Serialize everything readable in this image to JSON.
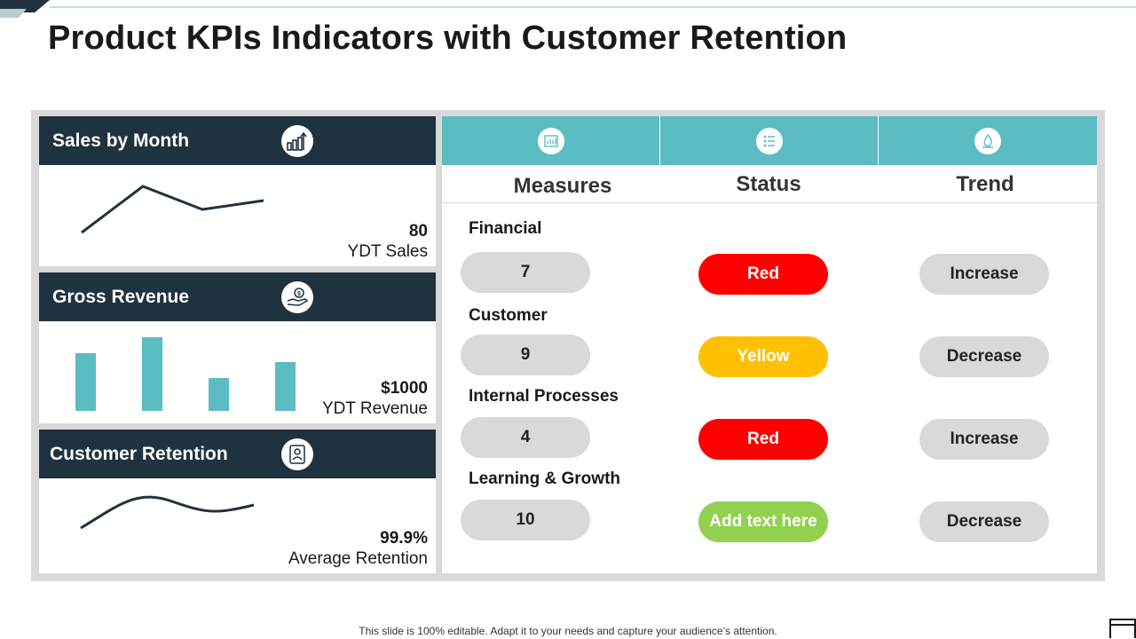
{
  "title": "Product KPIs Indicators with Customer Retention",
  "panels": {
    "sales": {
      "title": "Sales by Month",
      "icon": "bar-chart-icon",
      "value": "80",
      "caption": "YDT Sales"
    },
    "revenue": {
      "title": "Gross Revenue",
      "icon": "money-hand-icon",
      "value": "$1000",
      "caption": "YDT Revenue"
    },
    "retention": {
      "title": "Customer Retention",
      "icon": "customer-icon",
      "value": "99.9%",
      "caption": "Average Retention"
    }
  },
  "table": {
    "headers": {
      "measures": "Measures",
      "status": "Status",
      "trend": "Trend"
    },
    "header_icons": [
      "report-icon",
      "list-icon",
      "trend-flame-icon"
    ],
    "rows": [
      {
        "category": "Financial",
        "value": "7",
        "status": "Red",
        "status_color": "#ff0000",
        "trend": "Increase"
      },
      {
        "category": "Customer",
        "value": "9",
        "status": "Yellow",
        "status_color": "#ffc000",
        "trend": "Decrease"
      },
      {
        "category": "Internal Processes",
        "value": "4",
        "status": "Red",
        "status_color": "#ff0000",
        "trend": "Increase"
      },
      {
        "category": "Learning & Growth",
        "value": "10",
        "status": "Add text here",
        "status_color": "#92d050",
        "trend": "Decrease"
      }
    ]
  },
  "colors": {
    "navy": "#1f3240",
    "teal": "#5bbcc2",
    "grey": "#d9d9d9"
  },
  "footer": "This slide is 100% editable. Adapt it to your needs and capture your audience’s attention."
}
